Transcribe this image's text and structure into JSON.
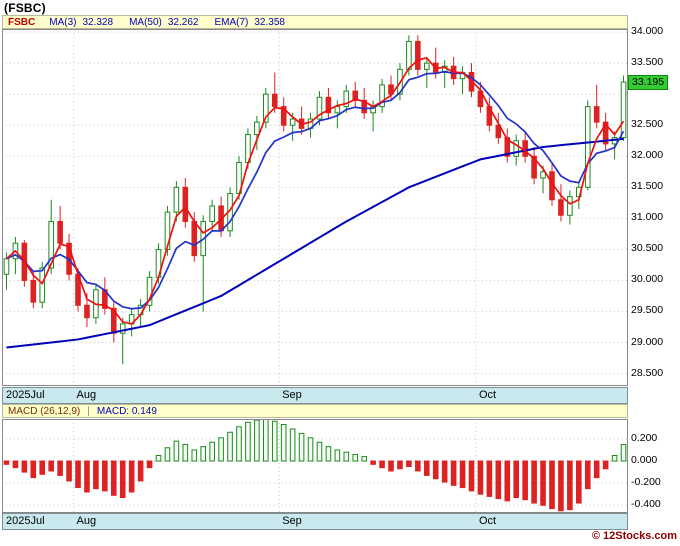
{
  "header": {
    "title": "(FSBC)"
  },
  "footer": {
    "watermark": "© 12Stocks.com"
  },
  "colors": {
    "up_fill": "#ffffff",
    "up_stroke": "#1d8a1d",
    "down": "#dd2222",
    "ma3": "#ee1111",
    "ema7": "#2233cc",
    "ma50": "#0000bb",
    "grid": "#c8c8c8",
    "border": "#888888",
    "macd_pos_fill": "#f2fbf2",
    "macd_pos_stroke": "#1d8a1d",
    "macd_neg": "#dd2222",
    "price_box_bg": "#33cc33",
    "legend_bg": "#ffffcc",
    "band_bg": "#c9e9ee",
    "watermark_color": "#8b0000"
  },
  "chart_data": [
    {
      "type": "candlestick",
      "symbol": "FSBC",
      "legend": {
        "symbol": "FSBC",
        "ma3_label": "MA(3)",
        "ma3_value": "32.328",
        "ma50_label": "MA(50)",
        "ma50_value": "32.262",
        "ema7_label": "EMA(7)",
        "ema7_value": "32.358"
      },
      "ylim": [
        28.3,
        34.05
      ],
      "grid": true,
      "last_price": "33.195",
      "last_price_value": 33.195,
      "y_ticks": [
        {
          "value": 34.0,
          "label": "34.000"
        },
        {
          "value": 33.5,
          "label": "33.500"
        },
        {
          "value": 33.0,
          "label": ""
        },
        {
          "value": 32.5,
          "label": "32.500"
        },
        {
          "value": 32.0,
          "label": "32.000"
        },
        {
          "value": 31.5,
          "label": "31.500"
        },
        {
          "value": 31.0,
          "label": "31.000"
        },
        {
          "value": 30.5,
          "label": "30.500"
        },
        {
          "value": 30.0,
          "label": "30.000"
        },
        {
          "value": 29.5,
          "label": "29.500"
        },
        {
          "value": 29.0,
          "label": "29.000"
        },
        {
          "value": 28.5,
          "label": "28.500"
        }
      ],
      "months": [
        {
          "label": "2025Jul",
          "index": 0
        },
        {
          "label": "Aug",
          "index": 8
        },
        {
          "label": "Sep",
          "index": 31
        },
        {
          "label": "Oct",
          "index": 53
        }
      ],
      "ma50_keypoints": [
        [
          0,
          28.92
        ],
        [
          8,
          29.05
        ],
        [
          16,
          29.28
        ],
        [
          24,
          29.75
        ],
        [
          31,
          30.35
        ],
        [
          38,
          30.95
        ],
        [
          45,
          31.5
        ],
        [
          53,
          31.95
        ],
        [
          60,
          32.15
        ],
        [
          69,
          32.28
        ]
      ],
      "candles": [
        [
          30.1,
          30.45,
          29.85,
          30.35
        ],
        [
          30.35,
          30.7,
          30.1,
          30.6
        ],
        [
          30.6,
          30.65,
          29.9,
          30.0
        ],
        [
          30.0,
          30.15,
          29.55,
          29.65
        ],
        [
          29.65,
          30.3,
          29.55,
          30.2
        ],
        [
          30.2,
          31.3,
          30.1,
          30.95
        ],
        [
          30.95,
          31.2,
          30.5,
          30.6
        ],
        [
          30.6,
          30.75,
          30.0,
          30.1
        ],
        [
          30.1,
          30.2,
          29.5,
          29.6
        ],
        [
          29.6,
          29.8,
          29.25,
          29.4
        ],
        [
          29.4,
          29.95,
          29.3,
          29.85
        ],
        [
          29.85,
          30.05,
          29.45,
          29.55
        ],
        [
          29.55,
          29.65,
          29.0,
          29.15
        ],
        [
          29.15,
          29.4,
          28.65,
          29.3
        ],
        [
          29.3,
          29.55,
          29.1,
          29.45
        ],
        [
          29.45,
          29.7,
          29.25,
          29.6
        ],
        [
          29.6,
          30.15,
          29.5,
          30.05
        ],
        [
          30.05,
          30.6,
          29.95,
          30.5
        ],
        [
          30.5,
          31.2,
          30.4,
          31.1
        ],
        [
          31.1,
          31.6,
          30.95,
          31.5
        ],
        [
          31.5,
          31.65,
          30.85,
          30.95
        ],
        [
          30.95,
          31.1,
          30.3,
          30.4
        ],
        [
          30.4,
          31.05,
          29.5,
          30.95
        ],
        [
          30.95,
          31.3,
          30.8,
          31.2
        ],
        [
          31.2,
          31.35,
          30.7,
          30.8
        ],
        [
          30.8,
          31.5,
          30.7,
          31.4
        ],
        [
          31.4,
          32.0,
          31.3,
          31.9
        ],
        [
          31.9,
          32.45,
          31.8,
          32.35
        ],
        [
          32.35,
          32.65,
          32.1,
          32.55
        ],
        [
          32.55,
          33.1,
          32.45,
          33.0
        ],
        [
          33.0,
          33.35,
          32.7,
          32.8
        ],
        [
          32.8,
          32.95,
          32.4,
          32.5
        ],
        [
          32.5,
          32.7,
          32.25,
          32.6
        ],
        [
          32.6,
          32.8,
          32.35,
          32.45
        ],
        [
          32.45,
          32.7,
          32.3,
          32.6
        ],
        [
          32.6,
          33.05,
          32.5,
          32.95
        ],
        [
          32.95,
          33.1,
          32.6,
          32.7
        ],
        [
          32.7,
          32.9,
          32.45,
          32.8
        ],
        [
          32.8,
          33.15,
          32.7,
          33.05
        ],
        [
          33.05,
          33.2,
          32.8,
          32.9
        ],
        [
          32.9,
          33.1,
          32.6,
          32.7
        ],
        [
          32.7,
          32.9,
          32.4,
          32.8
        ],
        [
          32.8,
          33.25,
          32.7,
          33.15
        ],
        [
          33.15,
          33.3,
          32.9,
          33.0
        ],
        [
          33.0,
          33.5,
          32.9,
          33.4
        ],
        [
          33.4,
          33.95,
          33.3,
          33.85
        ],
        [
          33.85,
          33.95,
          33.3,
          33.4
        ],
        [
          33.4,
          33.6,
          33.1,
          33.5
        ],
        [
          33.5,
          33.75,
          33.25,
          33.35
        ],
        [
          33.35,
          33.55,
          33.1,
          33.45
        ],
        [
          33.45,
          33.6,
          33.15,
          33.25
        ],
        [
          33.25,
          33.45,
          33.0,
          33.35
        ],
        [
          33.35,
          33.5,
          32.95,
          33.05
        ],
        [
          33.05,
          33.2,
          32.7,
          32.8
        ],
        [
          32.8,
          32.95,
          32.4,
          32.5
        ],
        [
          32.5,
          32.7,
          32.2,
          32.3
        ],
        [
          32.3,
          32.45,
          31.9,
          32.0
        ],
        [
          32.0,
          32.35,
          31.85,
          32.25
        ],
        [
          32.25,
          32.4,
          31.9,
          32.0
        ],
        [
          32.0,
          32.15,
          31.55,
          31.65
        ],
        [
          31.65,
          31.85,
          31.4,
          31.75
        ],
        [
          31.75,
          31.9,
          31.2,
          31.3
        ],
        [
          31.3,
          31.55,
          30.95,
          31.05
        ],
        [
          31.05,
          31.45,
          30.9,
          31.35
        ],
        [
          31.35,
          31.6,
          31.15,
          31.5
        ],
        [
          31.5,
          32.9,
          31.45,
          32.8
        ],
        [
          32.8,
          33.15,
          32.45,
          32.55
        ],
        [
          32.55,
          32.7,
          32.1,
          32.2
        ],
        [
          32.2,
          32.4,
          31.95,
          32.3
        ],
        [
          32.3,
          33.3,
          32.25,
          33.195
        ]
      ]
    },
    {
      "type": "bar",
      "title": "MACD (26,12,9)",
      "separator": "|",
      "value_label": "MACD: 0.149",
      "ylim": [
        -0.47,
        0.38
      ],
      "grid": true,
      "y_ticks": [
        {
          "value": 0.2,
          "label": "0.200"
        },
        {
          "value": 0.0,
          "label": "0.000"
        },
        {
          "value": -0.2,
          "label": "-0.200"
        },
        {
          "value": -0.4,
          "label": "-0.400"
        }
      ],
      "months": [
        {
          "label": "2025Jul",
          "index": 0
        },
        {
          "label": "Aug",
          "index": 8
        },
        {
          "label": "Sep",
          "index": 31
        },
        {
          "label": "Oct",
          "index": 53
        }
      ],
      "values": [
        -0.03,
        -0.06,
        -0.1,
        -0.15,
        -0.12,
        -0.09,
        -0.13,
        -0.18,
        -0.24,
        -0.28,
        -0.25,
        -0.27,
        -0.31,
        -0.33,
        -0.28,
        -0.18,
        -0.06,
        0.05,
        0.12,
        0.18,
        0.15,
        0.1,
        0.13,
        0.17,
        0.21,
        0.26,
        0.31,
        0.35,
        0.37,
        0.38,
        0.36,
        0.33,
        0.29,
        0.25,
        0.21,
        0.17,
        0.13,
        0.1,
        0.08,
        0.06,
        0.04,
        -0.03,
        -0.06,
        -0.09,
        -0.07,
        -0.05,
        -0.09,
        -0.13,
        -0.16,
        -0.19,
        -0.22,
        -0.24,
        -0.27,
        -0.3,
        -0.32,
        -0.34,
        -0.36,
        -0.33,
        -0.35,
        -0.38,
        -0.4,
        -0.43,
        -0.45,
        -0.44,
        -0.38,
        -0.25,
        -0.15,
        -0.07,
        0.05,
        0.149
      ]
    }
  ]
}
